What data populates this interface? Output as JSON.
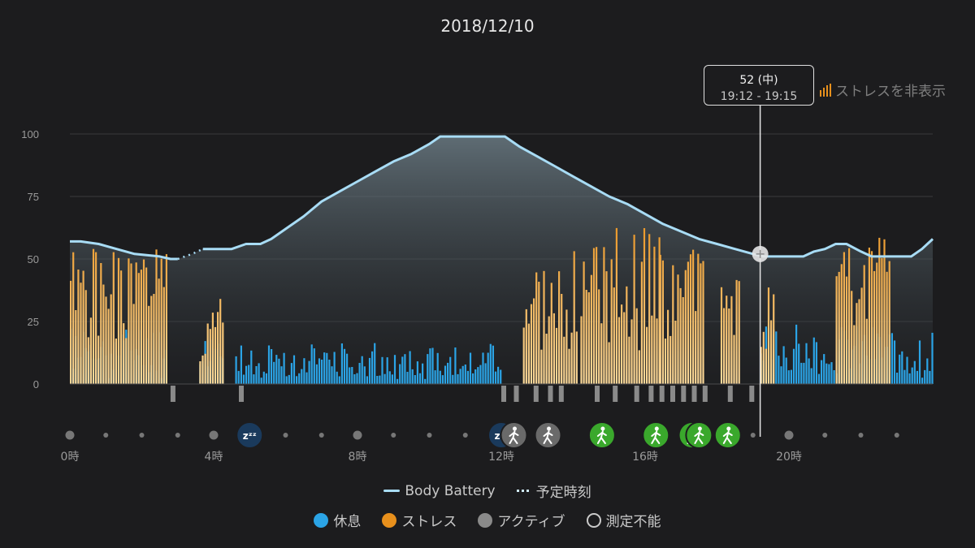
{
  "header": {
    "title": "2018/12/10"
  },
  "controls": {
    "stress_toggle_label": "ストレスを非表示"
  },
  "tooltip": {
    "value": "52 (中)",
    "range": "19:12 - 19:15"
  },
  "legend": {
    "body_battery": "Body Battery",
    "scheduled": "予定時刻",
    "rest": "休息",
    "stress": "ストレス",
    "active": "アクティブ",
    "unmeasurable": "測定不能"
  },
  "colors": {
    "rest": "#2ba4e6",
    "stress": "#e8901c",
    "stress_light": "#fbd99a",
    "active": "#8a8a8a",
    "battery": "#a8dcf5",
    "walk_green": "#3aa82c",
    "sleep": "#1a3a5c"
  },
  "chart_data": {
    "type": "line+bar",
    "x_unit": "hour",
    "xlim": [
      0,
      24
    ],
    "ylim": [
      0,
      100
    ],
    "y_ticks": [
      0,
      25,
      50,
      75,
      100
    ],
    "x_ticks": [
      {
        "hour": 0,
        "label": "0時"
      },
      {
        "hour": 4,
        "label": "4時"
      },
      {
        "hour": 8,
        "label": "8時"
      },
      {
        "hour": 12,
        "label": "12時"
      },
      {
        "hour": 16,
        "label": "16時"
      },
      {
        "hour": 20,
        "label": "20時"
      }
    ],
    "body_battery": [
      [
        0,
        57
      ],
      [
        0.3,
        57
      ],
      [
        0.8,
        56
      ],
      [
        1.3,
        54
      ],
      [
        1.8,
        52
      ],
      [
        2.5,
        51
      ],
      [
        2.8,
        50
      ],
      [
        3.0,
        50
      ]
    ],
    "body_battery_scheduled": [
      [
        3.0,
        50
      ],
      [
        3.4,
        52
      ],
      [
        3.7,
        54
      ]
    ],
    "body_battery_2": [
      [
        3.7,
        54
      ],
      [
        4.5,
        54
      ],
      [
        4.9,
        56
      ],
      [
        5.3,
        56
      ],
      [
        5.6,
        58
      ],
      [
        6.0,
        62
      ],
      [
        6.5,
        67
      ],
      [
        7.0,
        73
      ],
      [
        7.5,
        77
      ],
      [
        8.0,
        81
      ],
      [
        8.5,
        85
      ],
      [
        9.0,
        89
      ],
      [
        9.5,
        92
      ],
      [
        10.0,
        96
      ],
      [
        10.3,
        99
      ],
      [
        12.1,
        99
      ],
      [
        12.5,
        95
      ],
      [
        13.0,
        91
      ],
      [
        13.5,
        87
      ],
      [
        14.0,
        83
      ],
      [
        14.5,
        79
      ],
      [
        15.0,
        75
      ],
      [
        15.5,
        72
      ],
      [
        16.0,
        68
      ],
      [
        16.5,
        64
      ],
      [
        17.0,
        61
      ],
      [
        17.5,
        58
      ],
      [
        18.0,
        56
      ],
      [
        18.5,
        54
      ],
      [
        19.0,
        52
      ],
      [
        19.3,
        51
      ],
      [
        19.5,
        51
      ],
      [
        20.0,
        51
      ],
      [
        20.4,
        51
      ],
      [
        20.7,
        53
      ],
      [
        21.0,
        54
      ],
      [
        21.3,
        56
      ],
      [
        21.6,
        56
      ],
      [
        22.0,
        53
      ],
      [
        22.3,
        51
      ],
      [
        23.0,
        51
      ],
      [
        23.4,
        51
      ],
      [
        23.7,
        54
      ],
      [
        24.0,
        58
      ]
    ],
    "stress_segments": [
      {
        "x0": 0.0,
        "x1": 2.7,
        "base": 40,
        "amp": 14,
        "seed": 1
      },
      {
        "x0": 3.6,
        "x1": 4.3,
        "base": 22,
        "amp": 16,
        "seed": 2
      },
      {
        "x0": 12.6,
        "x1": 14.1,
        "base": 35,
        "amp": 22,
        "seed": 3
      },
      {
        "x0": 14.2,
        "x1": 16.4,
        "base": 45,
        "amp": 20,
        "seed": 4
      },
      {
        "x0": 16.4,
        "x1": 17.6,
        "base": 40,
        "amp": 15,
        "seed": 5
      },
      {
        "x0": 18.1,
        "x1": 18.6,
        "base": 36,
        "amp": 6,
        "seed": 6
      },
      {
        "x0": 19.2,
        "x1": 19.6,
        "base": 28,
        "amp": 14,
        "seed": 7
      },
      {
        "x0": 21.3,
        "x1": 22.8,
        "base": 46,
        "amp": 14,
        "seed": 8
      }
    ],
    "rest_segments": [
      {
        "x0": 0.0,
        "x1": 2.7,
        "base": 14,
        "amp": 10,
        "seed": 11
      },
      {
        "x0": 3.6,
        "x1": 4.3,
        "base": 12,
        "amp": 8,
        "seed": 12
      },
      {
        "x0": 4.6,
        "x1": 12.0,
        "base": 10,
        "amp": 7,
        "seed": 13
      },
      {
        "x0": 19.2,
        "x1": 24.0,
        "base": 14,
        "amp": 10,
        "seed": 14
      }
    ],
    "active_ticks": [
      2.8,
      4.7,
      12.0,
      12.35,
      12.9,
      13.3,
      13.6,
      14.6,
      15.1,
      15.7,
      16.1,
      16.4,
      16.7,
      17.0,
      17.3,
      17.6,
      18.3,
      18.9
    ],
    "events": [
      {
        "hour": 0.0,
        "type": "dot"
      },
      {
        "hour": 1.0,
        "type": "dot"
      },
      {
        "hour": 2.0,
        "type": "dot"
      },
      {
        "hour": 3.0,
        "type": "dot"
      },
      {
        "hour": 4.0,
        "type": "dot"
      },
      {
        "hour": 5.0,
        "type": "sleep"
      },
      {
        "hour": 6.0,
        "type": "dot"
      },
      {
        "hour": 7.0,
        "type": "dot"
      },
      {
        "hour": 8.0,
        "type": "dot"
      },
      {
        "hour": 9.0,
        "type": "dot"
      },
      {
        "hour": 10.0,
        "type": "dot"
      },
      {
        "hour": 11.0,
        "type": "dot"
      },
      {
        "hour": 12.0,
        "type": "sleep"
      },
      {
        "hour": 12.35,
        "type": "walk-gray"
      },
      {
        "hour": 13.3,
        "type": "walk-gray"
      },
      {
        "hour": 14.8,
        "type": "walk-green"
      },
      {
        "hour": 16.3,
        "type": "walk-green"
      },
      {
        "hour": 17.3,
        "type": "walk-green"
      },
      {
        "hour": 17.5,
        "type": "walk-green"
      },
      {
        "hour": 18.3,
        "type": "walk-green"
      },
      {
        "hour": 19.0,
        "type": "dot"
      },
      {
        "hour": 20.0,
        "type": "dot"
      },
      {
        "hour": 21.0,
        "type": "dot"
      },
      {
        "hour": 22.0,
        "type": "dot"
      },
      {
        "hour": 23.0,
        "type": "dot"
      }
    ],
    "cursor": {
      "hour": 19.2,
      "value": 52
    }
  }
}
